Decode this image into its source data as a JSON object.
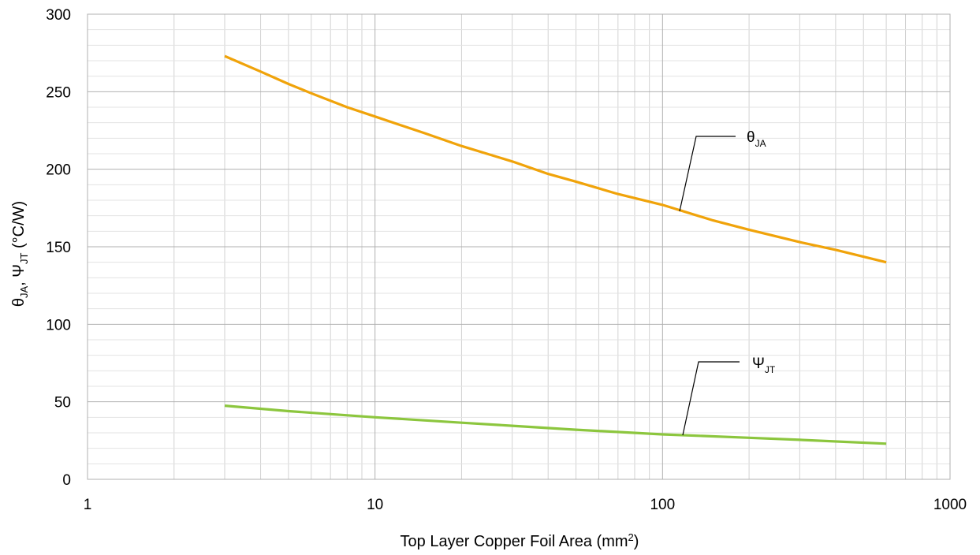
{
  "chart_data": {
    "type": "line",
    "title": "",
    "xlabel": {
      "prefix": "Top Layer Copper Foil Area (mm",
      "sup": "2",
      "suffix": ")"
    },
    "ylabel": {
      "p1": "θ",
      "p1_sub": "JA",
      "p2": ", Ψ",
      "p2_sub": "JT",
      "p3": " (°C/W)"
    },
    "xscale": "log",
    "xlim": [
      1,
      1000
    ],
    "ylim": [
      0,
      300
    ],
    "xticks": [
      1,
      10,
      100,
      1000
    ],
    "xtick_labels": [
      "1",
      "10",
      "100",
      "1000"
    ],
    "yticks": [
      0,
      50,
      100,
      150,
      200,
      250,
      300
    ],
    "ytick_labels": [
      "0",
      "50",
      "100",
      "150",
      "200",
      "250",
      "300"
    ],
    "grid": true,
    "series": [
      {
        "name": "θJA",
        "label_main": "θ",
        "label_sub": "JA",
        "color": "#f0a30a",
        "x": [
          3,
          4,
          5,
          6,
          8,
          10,
          15,
          20,
          30,
          40,
          50,
          70,
          100,
          150,
          200,
          300,
          400,
          600
        ],
        "y": [
          273,
          263,
          255,
          249,
          240,
          234,
          223,
          215,
          205,
          197,
          192,
          184,
          177,
          167,
          161,
          153,
          148,
          140
        ]
      },
      {
        "name": "ΨJT",
        "label_main": "Ψ",
        "label_sub": "JT",
        "color": "#8cc63e",
        "x": [
          3,
          5,
          10,
          20,
          30,
          50,
          100,
          200,
          300,
          600
        ],
        "y": [
          47.5,
          44,
          40,
          36.5,
          34.5,
          32,
          29,
          26.8,
          25.5,
          23
        ]
      }
    ]
  }
}
